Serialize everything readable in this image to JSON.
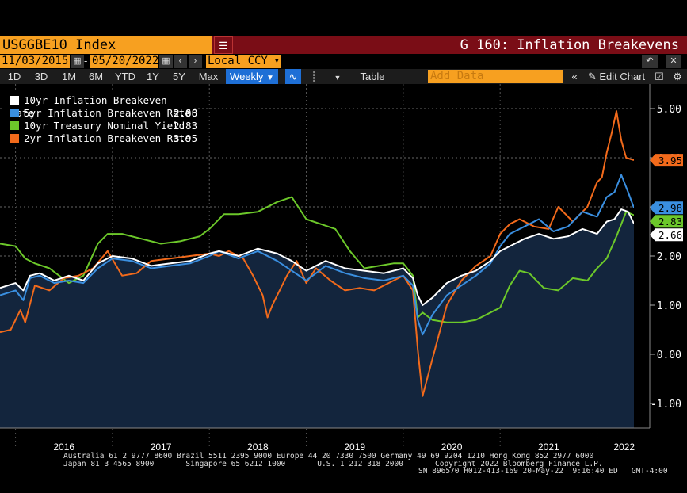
{
  "header": {
    "ticker": "USGGBE10 Index",
    "graph_title": "G 160: Inflation Breakevens",
    "start_date": "11/03/2015",
    "end_date": "05/20/2022",
    "currency": "Local CCY",
    "add_data_placeholder": "Add Data",
    "edit_chart": "Edit Chart",
    "table": "Table",
    "weekly": "Weekly",
    "ranges": [
      "1D",
      "3D",
      "1M",
      "6M",
      "YTD",
      "1Y",
      "5Y",
      "Max"
    ]
  },
  "footer": {
    "line1": "Australia 61 2 9777 8600 Brazil 5511 2395 9000 Europe 44 20 7330 7500 Germany 49 69 9204 1210 Hong Kong 852 2977 6000",
    "line2": "Japan 81 3 4565 8900       Singapore 65 6212 1000       U.S. 1 212 318 2000       Copyright 2022 Bloomberg Finance L.P.",
    "line3": "SN 896570 H012-413-169 20-May-22  9:16:40 EDT  GMT-4:00"
  },
  "chart_data": {
    "type": "line",
    "title": "G 160: Inflation Breakevens",
    "x_labels": [
      "2016",
      "2017",
      "2018",
      "2019",
      "2020",
      "2021",
      "2022"
    ],
    "x_range": [
      2015.84,
      2022.38
    ],
    "y_ticks": [
      "5.00",
      "4.00",
      "3.00",
      "2.00",
      "1.00",
      "0.00",
      "-1.00"
    ],
    "ylim": [
      -1.5,
      5.5
    ],
    "grid": true,
    "legend_position": "top-left",
    "series": [
      {
        "name": "10yr Inflation Breakeven Rate",
        "last": "2.66",
        "color": "#ffffff",
        "area": true,
        "x": [
          2015.84,
          2016.0,
          2016.08,
          2016.15,
          2016.25,
          2016.4,
          2016.55,
          2016.7,
          2016.85,
          2017.0,
          2017.2,
          2017.4,
          2017.6,
          2017.8,
          2018.0,
          2018.1,
          2018.3,
          2018.5,
          2018.7,
          2018.85,
          2019.0,
          2019.2,
          2019.4,
          2019.6,
          2019.8,
          2020.0,
          2020.1,
          2020.15,
          2020.2,
          2020.3,
          2020.45,
          2020.6,
          2020.75,
          2020.9,
          2021.0,
          2021.1,
          2021.25,
          2021.4,
          2021.55,
          2021.7,
          2021.85,
          2022.0,
          2022.1,
          2022.18,
          2022.25,
          2022.32,
          2022.38
        ],
        "y": [
          1.35,
          1.45,
          1.3,
          1.6,
          1.65,
          1.5,
          1.6,
          1.5,
          1.85,
          2.0,
          1.95,
          1.8,
          1.85,
          1.9,
          2.05,
          2.1,
          2.0,
          2.15,
          2.05,
          1.9,
          1.7,
          1.9,
          1.75,
          1.7,
          1.65,
          1.75,
          1.55,
          1.2,
          1.0,
          1.15,
          1.45,
          1.6,
          1.7,
          1.9,
          2.1,
          2.2,
          2.35,
          2.45,
          2.35,
          2.4,
          2.55,
          2.45,
          2.7,
          2.75,
          2.95,
          2.9,
          2.66
        ]
      },
      {
        "name": "5yr Inflation Breakeven Rate",
        "last": "2.98",
        "color": "#3a8fe0",
        "area": false,
        "x": [
          2015.84,
          2016.0,
          2016.08,
          2016.15,
          2016.25,
          2016.4,
          2016.55,
          2016.7,
          2016.85,
          2017.0,
          2017.2,
          2017.4,
          2017.6,
          2017.8,
          2018.0,
          2018.1,
          2018.3,
          2018.5,
          2018.7,
          2018.85,
          2019.0,
          2019.2,
          2019.4,
          2019.6,
          2019.8,
          2020.0,
          2020.1,
          2020.15,
          2020.2,
          2020.3,
          2020.45,
          2020.6,
          2020.75,
          2020.9,
          2021.0,
          2021.1,
          2021.25,
          2021.4,
          2021.55,
          2021.7,
          2021.85,
          2022.0,
          2022.1,
          2022.18,
          2022.25,
          2022.32,
          2022.38
        ],
        "y": [
          1.2,
          1.3,
          1.1,
          1.55,
          1.6,
          1.45,
          1.5,
          1.45,
          1.75,
          1.95,
          1.9,
          1.75,
          1.8,
          1.85,
          2.0,
          2.1,
          1.95,
          2.1,
          1.9,
          1.7,
          1.5,
          1.8,
          1.65,
          1.55,
          1.5,
          1.6,
          1.4,
          0.7,
          0.4,
          0.8,
          1.2,
          1.4,
          1.6,
          1.85,
          2.2,
          2.45,
          2.6,
          2.75,
          2.5,
          2.6,
          2.9,
          2.8,
          3.2,
          3.3,
          3.65,
          3.3,
          2.98
        ]
      },
      {
        "name": "10yr Treasury Nominal Yield",
        "last": "2.83",
        "color": "#6cc82a",
        "area": false,
        "x": [
          2015.84,
          2016.0,
          2016.1,
          2016.2,
          2016.35,
          2016.55,
          2016.7,
          2016.85,
          2016.95,
          2017.1,
          2017.3,
          2017.5,
          2017.7,
          2017.9,
          2018.0,
          2018.15,
          2018.3,
          2018.5,
          2018.7,
          2018.85,
          2019.0,
          2019.15,
          2019.3,
          2019.45,
          2019.6,
          2019.75,
          2019.9,
          2020.0,
          2020.1,
          2020.15,
          2020.2,
          2020.3,
          2020.45,
          2020.6,
          2020.75,
          2020.9,
          2021.0,
          2021.1,
          2021.2,
          2021.3,
          2021.45,
          2021.6,
          2021.75,
          2021.9,
          2022.0,
          2022.1,
          2022.2,
          2022.3,
          2022.38
        ],
        "y": [
          2.25,
          2.2,
          1.95,
          1.85,
          1.75,
          1.45,
          1.6,
          2.25,
          2.45,
          2.45,
          2.35,
          2.25,
          2.3,
          2.4,
          2.55,
          2.85,
          2.85,
          2.9,
          3.1,
          3.2,
          2.75,
          2.65,
          2.55,
          2.1,
          1.75,
          1.8,
          1.85,
          1.85,
          1.6,
          0.75,
          0.85,
          0.7,
          0.65,
          0.65,
          0.7,
          0.85,
          0.95,
          1.4,
          1.7,
          1.65,
          1.35,
          1.3,
          1.55,
          1.5,
          1.75,
          1.95,
          2.4,
          2.9,
          2.83
        ]
      },
      {
        "name": "2yr Inflation Breakeven Rate",
        "last": "3.95",
        "color": "#f26a1b",
        "area": false,
        "x": [
          2015.84,
          2015.95,
          2016.05,
          2016.1,
          2016.2,
          2016.35,
          2016.5,
          2016.65,
          2016.8,
          2016.95,
          2017.1,
          2017.25,
          2017.4,
          2017.6,
          2017.8,
          2018.0,
          2018.1,
          2018.2,
          2018.35,
          2018.45,
          2018.55,
          2018.6,
          2018.65,
          2018.8,
          2018.9,
          2019.0,
          2019.1,
          2019.25,
          2019.4,
          2019.55,
          2019.7,
          2019.85,
          2020.0,
          2020.1,
          2020.15,
          2020.2,
          2020.3,
          2020.45,
          2020.6,
          2020.75,
          2020.9,
          2021.0,
          2021.1,
          2021.2,
          2021.35,
          2021.5,
          2021.6,
          2021.75,
          2021.9,
          2022.0,
          2022.05,
          2022.1,
          2022.15,
          2022.2,
          2022.25,
          2022.3,
          2022.38
        ],
        "y": [
          0.45,
          0.5,
          0.9,
          0.65,
          1.4,
          1.3,
          1.55,
          1.6,
          1.75,
          2.1,
          1.6,
          1.65,
          1.9,
          1.95,
          2.0,
          2.05,
          2.0,
          2.1,
          1.95,
          1.6,
          1.2,
          0.75,
          1.0,
          1.6,
          1.9,
          1.45,
          1.75,
          1.5,
          1.3,
          1.35,
          1.3,
          1.45,
          1.6,
          1.3,
          0.1,
          -0.85,
          -0.1,
          1.0,
          1.5,
          1.8,
          2.0,
          2.45,
          2.65,
          2.75,
          2.6,
          2.55,
          3.0,
          2.7,
          3.0,
          3.5,
          3.6,
          4.1,
          4.5,
          4.95,
          4.35,
          4.0,
          3.95
        ]
      }
    ]
  }
}
